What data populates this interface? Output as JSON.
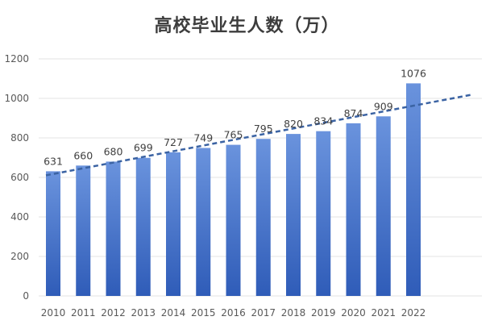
{
  "chart_data": {
    "type": "bar",
    "title": "高校毕业生人数（万）",
    "xlabel": "",
    "ylabel": "",
    "categories": [
      "2010",
      "2011",
      "2012",
      "2013",
      "2014",
      "2015",
      "2016",
      "2017",
      "2018",
      "2019",
      "2020",
      "2021",
      "2022"
    ],
    "values": [
      631,
      660,
      680,
      699,
      727,
      749,
      765,
      795,
      820,
      834,
      874,
      909,
      1076
    ],
    "ylim": [
      0,
      1200
    ],
    "yticks": [
      0,
      200,
      400,
      600,
      800,
      1000,
      1200
    ],
    "grid": true,
    "legend": "none",
    "trendline": {
      "type": "linear",
      "style": "dashed"
    },
    "colors": {
      "bar_top": "#6a93dd",
      "bar_bottom": "#2f5cb8",
      "trendline": "#3b63a3"
    }
  }
}
